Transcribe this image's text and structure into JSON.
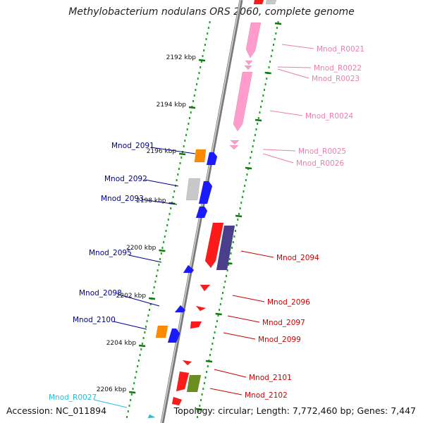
{
  "title": "Methylobacterium nodulans ORS 2060, complete genome",
  "footer": {
    "accession": "Accession: NC_011894",
    "summary": "Topology: circular; Length: 7,772,460 bp; Genes: 7,447"
  },
  "colors": {
    "reverse_label": "#00008b",
    "forward_label": "#cc0000",
    "rna_label": "#e87fae",
    "trna_label": "#22bfe0",
    "cds_reverse": "#1a1aff",
    "cds_forward": "#ff1a1a",
    "orange": "#ff8a00",
    "gray": "#c8c8c8",
    "purple": "#4b3f8c",
    "olive": "#6b8e23",
    "pink": "#ff9ccc",
    "tick_green": "#117711"
  },
  "scale": {
    "unit": "kbp",
    "ticks": [
      {
        "label": "2192 kbp"
      },
      {
        "label": "2194 kbp"
      },
      {
        "label": "2196 kbp"
      },
      {
        "label": "2198 kbp"
      },
      {
        "label": "2200 kbp"
      },
      {
        "label": "2202 kbp"
      },
      {
        "label": "2204 kbp"
      },
      {
        "label": "2206 kbp"
      }
    ]
  },
  "features": [
    {
      "label": "Mnod_R0021",
      "side": "right",
      "type": "rna"
    },
    {
      "label": "Mnod_R0022",
      "side": "right",
      "type": "rna"
    },
    {
      "label": "Mnod_R0023",
      "side": "right",
      "type": "rna"
    },
    {
      "label": "Mnod_R0024",
      "side": "right",
      "type": "rna"
    },
    {
      "label": "Mnod_R0025",
      "side": "right",
      "type": "rna"
    },
    {
      "label": "Mnod_R0026",
      "side": "right",
      "type": "rna"
    },
    {
      "label": "Mnod_2091",
      "side": "left",
      "type": "cds"
    },
    {
      "label": "Mnod_2092",
      "side": "left",
      "type": "cds"
    },
    {
      "label": "Mnod_2093",
      "side": "left",
      "type": "cds"
    },
    {
      "label": "Mnod_2094",
      "side": "right",
      "type": "cds"
    },
    {
      "label": "Mnod_2095",
      "side": "left",
      "type": "cds"
    },
    {
      "label": "Mnod_2096",
      "side": "right",
      "type": "cds"
    },
    {
      "label": "Mnod_2097",
      "side": "right",
      "type": "cds"
    },
    {
      "label": "Mnod_2098",
      "side": "left",
      "type": "cds"
    },
    {
      "label": "Mnod_2099",
      "side": "right",
      "type": "cds"
    },
    {
      "label": "Mnod_2100",
      "side": "left",
      "type": "cds"
    },
    {
      "label": "Mnod_2101",
      "side": "right",
      "type": "cds"
    },
    {
      "label": "Mnod_2102",
      "side": "right",
      "type": "cds"
    },
    {
      "label": "Mnod_R0027",
      "side": "left",
      "type": "trna"
    }
  ]
}
